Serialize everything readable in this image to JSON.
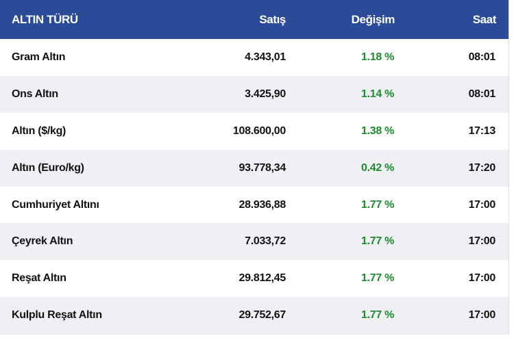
{
  "header": {
    "col_name": "ALTIN TÜRÜ",
    "col_price": "Satış",
    "col_change": "Değişim",
    "col_time": "Saat"
  },
  "rows": [
    {
      "name": "Gram Altın",
      "price": "4.343,01",
      "change": "1.18 %",
      "time": "08:01"
    },
    {
      "name": "Ons Altın",
      "price": "3.425,90",
      "change": "1.14 %",
      "time": "08:01"
    },
    {
      "name": "Altın ($/kg)",
      "price": "108.600,00",
      "change": "1.38 %",
      "time": "17:13"
    },
    {
      "name": "Altın (Euro/kg)",
      "price": "93.778,34",
      "change": "0.42 %",
      "time": "17:20"
    },
    {
      "name": "Cumhuriyet Altını",
      "price": "28.936,88",
      "change": "1.77 %",
      "time": "17:00"
    },
    {
      "name": "Çeyrek Altın",
      "price": "7.033,72",
      "change": "1.77 %",
      "time": "17:00"
    },
    {
      "name": "Reşat Altın",
      "price": "29.812,45",
      "change": "1.77 %",
      "time": "17:00"
    },
    {
      "name": "Kulplu Reşat Altın",
      "price": "29.752,67",
      "change": "1.77 %",
      "time": "17:00"
    }
  ],
  "colors": {
    "header_bg": "#2b4a98",
    "change_positive": "#1e8a2e",
    "row_alt_bg": "#eff0f4"
  }
}
